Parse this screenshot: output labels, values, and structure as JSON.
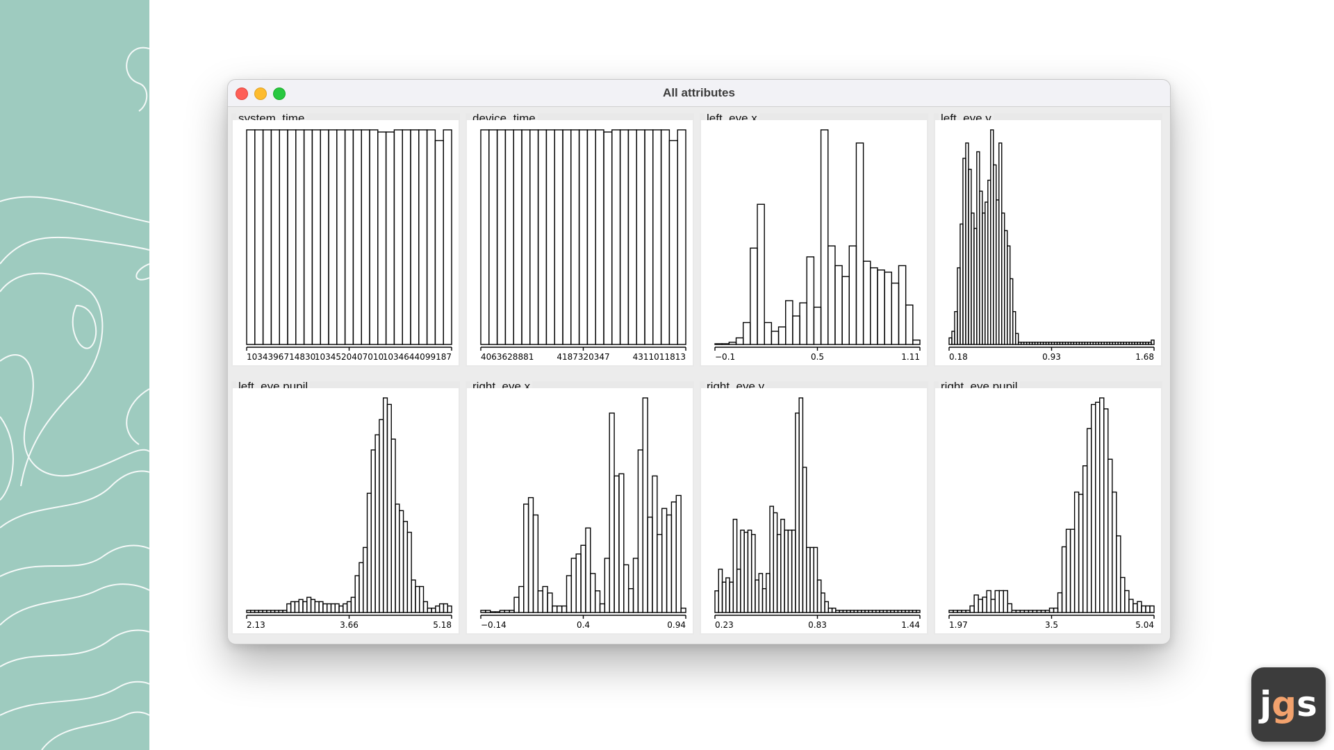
{
  "window": {
    "title": "All attributes"
  },
  "logo": {
    "j": "j",
    "g": "g",
    "s": "s",
    "accent": "#f3a26d"
  },
  "colors": {
    "left_panel": "#9ecbbf",
    "bars": "#000000",
    "plot_bg": "#ffffff"
  },
  "chart_data": [
    {
      "name": "system_time",
      "type": "bar",
      "tick_labels": [
        "1034396714830",
        "1034520407010",
        "1034644099187"
      ],
      "values": [
        100,
        100,
        100,
        100,
        100,
        100,
        100,
        100,
        100,
        100,
        100,
        100,
        100,
        100,
        100,
        100,
        99,
        99,
        100,
        100,
        100,
        100,
        100,
        95,
        100
      ]
    },
    {
      "name": "device_time",
      "type": "bar",
      "tick_labels": [
        "4063628881",
        "4187320347",
        "4311011813"
      ],
      "values": [
        100,
        100,
        100,
        100,
        100,
        100,
        100,
        100,
        100,
        100,
        100,
        100,
        100,
        100,
        100,
        99,
        100,
        100,
        100,
        100,
        100,
        100,
        100,
        95,
        100
      ]
    },
    {
      "name": "left_eye.x",
      "type": "bar",
      "tick_labels": [
        "−0.1",
        "0.5",
        "1.11"
      ],
      "values": [
        0,
        0,
        1,
        3,
        10,
        44,
        64,
        10,
        6,
        8,
        20,
        13,
        19,
        40,
        17,
        98,
        45,
        36,
        31,
        45,
        92,
        38,
        35,
        34,
        33,
        28,
        36,
        18,
        2
      ]
    },
    {
      "name": "left_eye.y",
      "type": "bar",
      "tick_labels": [
        "0.18",
        "0.93",
        "1.68"
      ],
      "values": [
        3,
        6,
        15,
        35,
        55,
        85,
        92,
        80,
        60,
        53,
        88,
        70,
        60,
        65,
        75,
        98,
        82,
        66,
        92,
        60,
        52,
        45,
        30,
        15,
        5,
        1,
        1,
        1,
        1,
        1,
        1,
        1,
        1,
        1,
        1,
        1,
        1,
        1,
        1,
        1,
        1,
        1,
        1,
        1,
        1,
        1,
        1,
        1,
        1,
        1,
        1,
        1,
        1,
        1,
        1,
        1,
        1,
        1,
        1,
        1,
        1,
        1,
        1,
        1,
        1,
        1,
        1,
        1,
        1,
        1,
        1,
        1,
        1,
        2
      ]
    },
    {
      "name": "left_eye.pupil",
      "type": "bar",
      "tick_labels": [
        "2.13",
        "3.66",
        "5.18"
      ],
      "values": [
        1,
        1,
        1,
        1,
        1,
        1,
        1,
        1,
        1,
        1,
        4,
        5,
        5,
        6,
        5,
        7,
        6,
        5,
        5,
        4,
        4,
        4,
        4,
        3,
        4,
        5,
        7,
        17,
        23,
        30,
        55,
        75,
        82,
        89,
        99,
        96,
        80,
        50,
        47,
        42,
        37,
        15,
        12,
        12,
        5,
        2,
        2,
        3,
        4,
        4,
        3
      ]
    },
    {
      "name": "right_eye.x",
      "type": "bar",
      "tick_labels": [
        "−0.14",
        "0.4",
        "0.94"
      ],
      "values": [
        1,
        1,
        0,
        0,
        1,
        1,
        1,
        7,
        12,
        50,
        53,
        45,
        10,
        12,
        9,
        3,
        3,
        3,
        17,
        25,
        27,
        31,
        39,
        18,
        10,
        4,
        25,
        92,
        63,
        64,
        22,
        11,
        25,
        75,
        99,
        44,
        63,
        36,
        48,
        45,
        51,
        54,
        2
      ]
    },
    {
      "name": "right_eye.y",
      "type": "bar",
      "tick_labels": [
        "0.23",
        "0.83",
        "1.44"
      ],
      "values": [
        10,
        20,
        14,
        16,
        14,
        43,
        20,
        38,
        37,
        38,
        36,
        15,
        18,
        11,
        18,
        49,
        46,
        36,
        43,
        38,
        38,
        38,
        92,
        99,
        67,
        30,
        30,
        30,
        15,
        9,
        5,
        2,
        2,
        1,
        1,
        1,
        1,
        1,
        1,
        1,
        1,
        1,
        1,
        1,
        1,
        1,
        1,
        1,
        1,
        1,
        1,
        1,
        1,
        1,
        1,
        1
      ]
    },
    {
      "name": "right_eye.pupil",
      "type": "bar",
      "tick_labels": [
        "1.97",
        "3.5",
        "5.04"
      ],
      "values": [
        1,
        1,
        1,
        1,
        1,
        3,
        8,
        6,
        7,
        10,
        6,
        10,
        10,
        10,
        4,
        1,
        1,
        1,
        1,
        1,
        1,
        1,
        1,
        1,
        2,
        2,
        9,
        30,
        38,
        38,
        55,
        54,
        67,
        84,
        95,
        96,
        98,
        93,
        70,
        55,
        35,
        16,
        10,
        6,
        4,
        5,
        3,
        3,
        3
      ]
    }
  ]
}
